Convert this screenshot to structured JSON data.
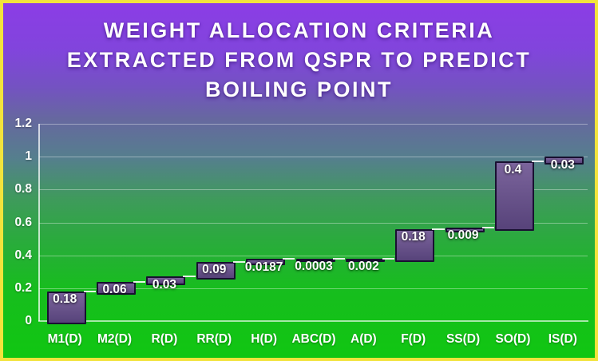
{
  "title": {
    "lines": [
      "WEIGHT ALLOCATION CRITERIA",
      "EXTRACTED FROM QSPR TO PREDICT",
      "BOILING POINT"
    ]
  },
  "chart_data": {
    "type": "bar",
    "subtype": "waterfall",
    "title": "WEIGHT ALLOCATION CRITERIA EXTRACTED FROM QSPR TO PREDICT BOILING POINT",
    "categories": [
      "M1(D)",
      "M2(D)",
      "R(D)",
      "RR(D)",
      "H(D)",
      "ABC(D)",
      "A(D)",
      "F(D)",
      "SS(D)",
      "SO(D)",
      "IS(D)"
    ],
    "values": [
      0.18,
      0.06,
      0.03,
      0.09,
      0.0187,
      0.0003,
      0.002,
      0.18,
      0.009,
      0.4,
      0.03
    ],
    "value_labels": [
      "0.18",
      "0.06",
      "0.03",
      "0.09",
      "0.0187",
      "0.0003",
      "0.002",
      "0.18",
      "0.009",
      "0.4",
      "0.03"
    ],
    "cumulative_start": [
      0,
      0.18,
      0.24,
      0.27,
      0.36,
      0.3787,
      0.379,
      0.381,
      0.561,
      0.57,
      0.97
    ],
    "cumulative_end": [
      0.18,
      0.24,
      0.27,
      0.36,
      0.3787,
      0.379,
      0.381,
      0.561,
      0.57,
      0.97,
      1.0
    ],
    "xlabel": "",
    "ylabel": "",
    "ylim": [
      0,
      1.2
    ],
    "y_ticks": [
      0,
      0.2,
      0.4,
      0.6,
      0.8,
      1,
      1.2
    ],
    "y_tick_labels": [
      "0",
      "0.2",
      "0.4",
      "0.6",
      "0.8",
      "1",
      "1.2"
    ],
    "grid": true,
    "legend": false,
    "colors": {
      "background_top": "#8C3CE6",
      "background_bottom": "#10C711",
      "frame_border": "#F2E33C",
      "bar_fill_top": "#7B649C",
      "bar_fill_bottom": "#57437A",
      "bar_border": "#191031",
      "gridline": "#FFFFFF",
      "axis_line": "#FFFFFF",
      "text": "#FFFFFF"
    }
  }
}
